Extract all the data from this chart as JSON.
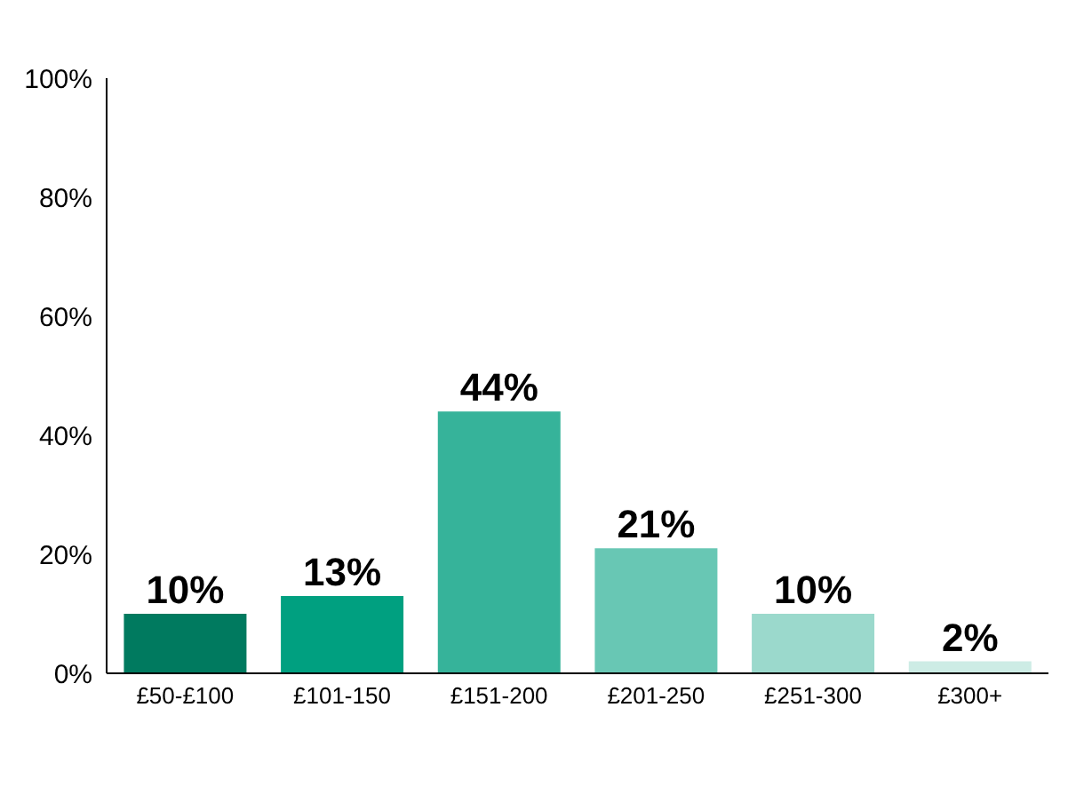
{
  "chart_data": {
    "type": "bar",
    "categories": [
      "£50-£100",
      "£101-150",
      "£151-200",
      "£201-250",
      "£251-300",
      "£300+"
    ],
    "values": [
      10,
      13,
      44,
      21,
      10,
      2
    ],
    "colors": [
      "#007a5f",
      "#00a080",
      "#36b39a",
      "#68c7b4",
      "#9bd9cc",
      "#cdece5"
    ],
    "value_labels": [
      "10%",
      "13%",
      "44%",
      "21%",
      "10%",
      "2%"
    ],
    "ylim": [
      0,
      100
    ],
    "yticks": [
      {
        "value": 0,
        "label": "0%"
      },
      {
        "value": 20,
        "label": "20%"
      },
      {
        "value": 40,
        "label": "40%"
      },
      {
        "value": 60,
        "label": "60%"
      },
      {
        "value": 80,
        "label": "80%"
      },
      {
        "value": 100,
        "label": "100%"
      }
    ],
    "grid": false,
    "legend": false
  }
}
